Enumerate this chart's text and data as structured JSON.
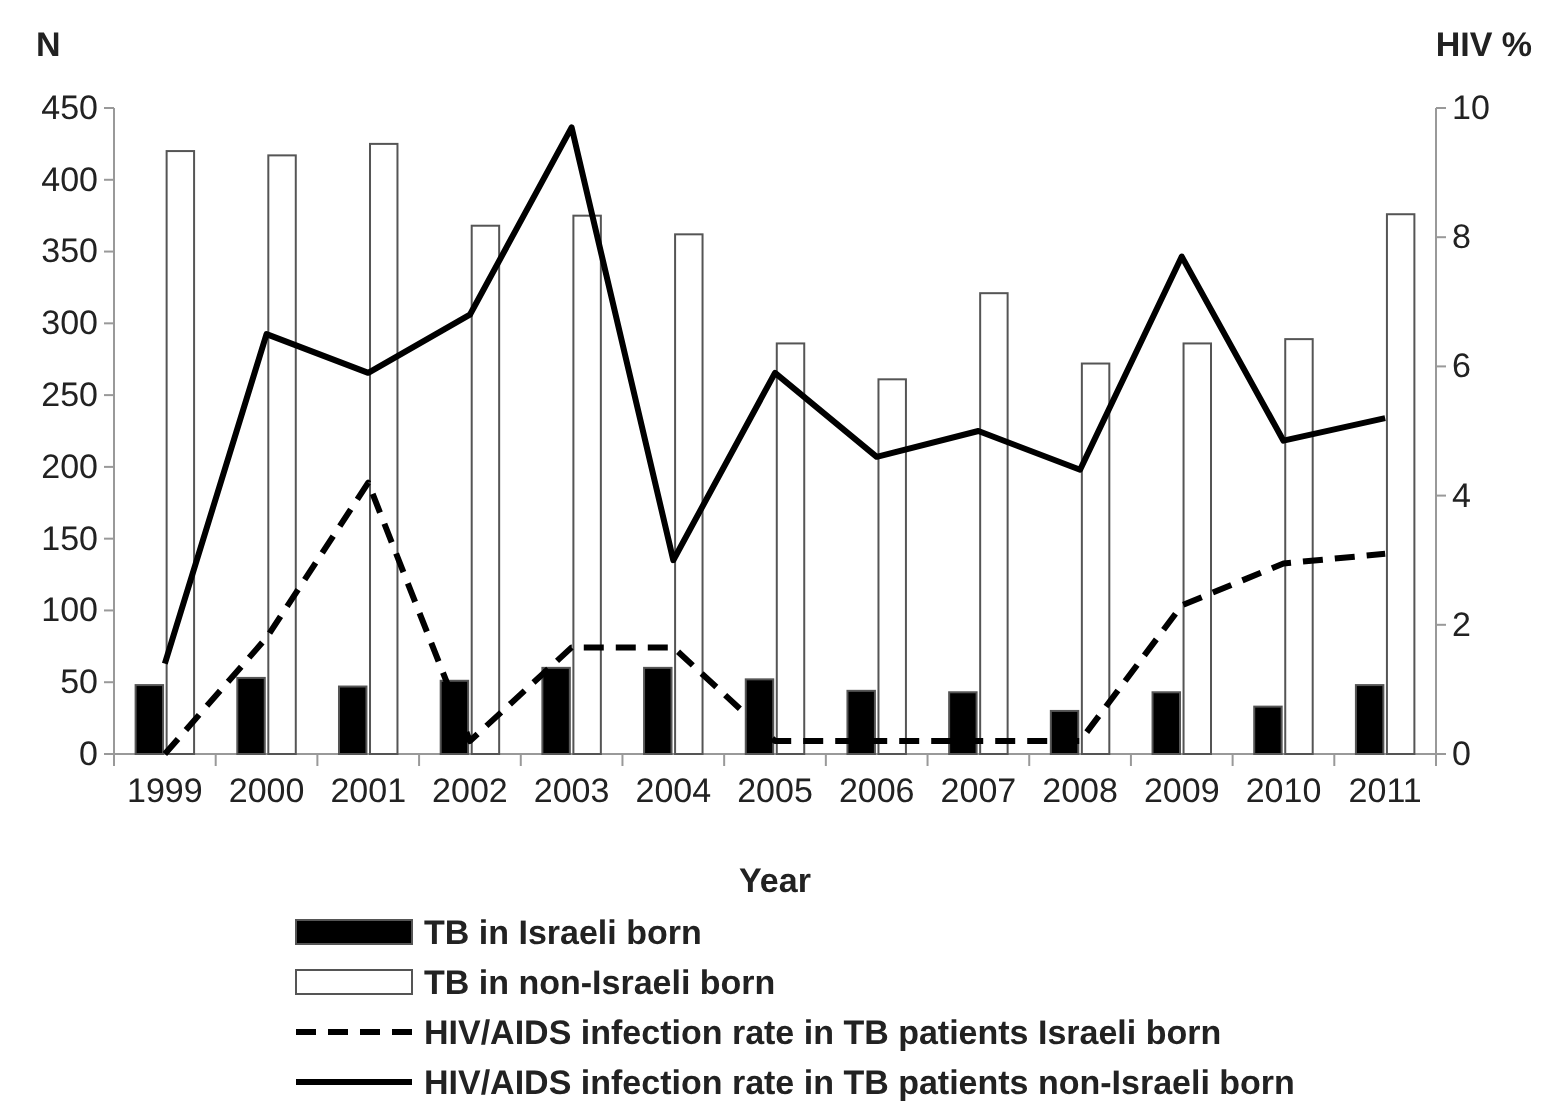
{
  "chart_data": {
    "type": "bar",
    "xlabel": "Year",
    "ylabel": "N",
    "y2label": "HIV %",
    "categories": [
      "1999",
      "2000",
      "2001",
      "2002",
      "2003",
      "2004",
      "2005",
      "2006",
      "2007",
      "2008",
      "2009",
      "2010",
      "2011"
    ],
    "series": [
      {
        "name": "TB in Israeli born",
        "color": "#000000",
        "values": [
          48,
          53,
          47,
          51,
          60,
          60,
          52,
          44,
          43,
          30,
          43,
          33,
          48
        ]
      },
      {
        "name": "TB in non-Israeli born",
        "color": "#ffffff",
        "values": [
          420,
          417,
          425,
          368,
          375,
          362,
          286,
          261,
          321,
          272,
          286,
          289,
          376
        ]
      },
      {
        "name": "HIV/AIDS infection rate in TB patients Israeli born",
        "type": "line",
        "axis": "y2",
        "line_style": "dashed",
        "color": "#000000",
        "values": [
          0,
          1.8,
          4.2,
          0.2,
          1.65,
          1.65,
          0.2,
          0.2,
          0.2,
          0.2,
          2.3,
          2.95,
          3.1
        ]
      },
      {
        "name": "HIV/AIDS infection rate in TB patients non-Israeli born",
        "type": "line",
        "axis": "y2",
        "line_style": "solid",
        "color": "#000000",
        "values": [
          1.4,
          6.5,
          5.9,
          6.8,
          9.7,
          3.0,
          5.9,
          4.6,
          5.0,
          4.4,
          7.7,
          4.85,
          5.2
        ]
      }
    ],
    "ylim": [
      0,
      450
    ],
    "yticks": [
      0,
      50,
      100,
      150,
      200,
      250,
      300,
      350,
      400,
      450
    ],
    "y2lim": [
      0,
      10
    ],
    "y2ticks": [
      0,
      2,
      4,
      6,
      8,
      10
    ],
    "legend": "bottom",
    "grid": false
  }
}
